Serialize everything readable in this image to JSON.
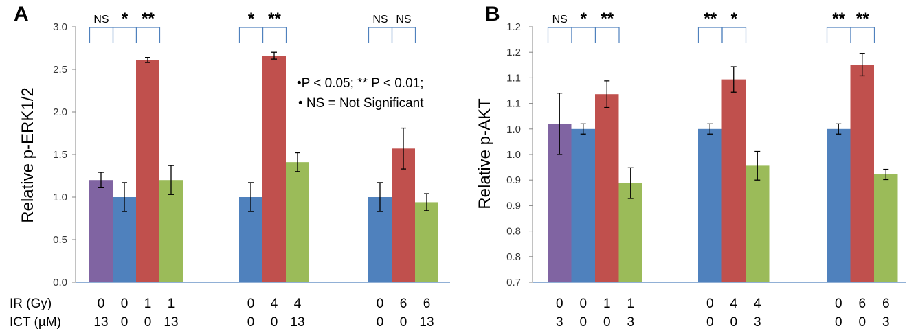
{
  "chart_data": [
    {
      "type": "bar",
      "panel": "A",
      "ylabel": "Relative p-ERK1/2",
      "ylim": [
        0,
        3.0
      ],
      "yticks": [
        "0.0",
        "0.5",
        "1.0",
        "1.5",
        "2.0",
        "2.5",
        "3.0"
      ],
      "ytick_values": [
        0,
        0.5,
        1.0,
        1.5,
        2.0,
        2.5,
        3.0
      ],
      "row_labels": [
        "IR (Gy)",
        "ICT (µM)"
      ],
      "groups": [
        {
          "bars": [
            {
              "value": 1.2,
              "error": 0.09,
              "color": "#8064a2",
              "ir": "0",
              "ict": "13"
            },
            {
              "value": 1.0,
              "error": 0.17,
              "color": "#4f81bd",
              "ir": "0",
              "ict": "0"
            },
            {
              "value": 2.61,
              "error": 0.03,
              "color": "#c0504d",
              "ir": "1",
              "ict": "0"
            },
            {
              "value": 1.2,
              "error": 0.17,
              "color": "#9bbb59",
              "ir": "1",
              "ict": "13"
            }
          ],
          "sig": [
            "NS",
            "*",
            "**"
          ]
        },
        {
          "bars": [
            {
              "value": 1.0,
              "error": 0.17,
              "color": "#4f81bd",
              "ir": "0",
              "ict": "0"
            },
            {
              "value": 2.66,
              "error": 0.04,
              "color": "#c0504d",
              "ir": "4",
              "ict": "0"
            },
            {
              "value": 1.41,
              "error": 0.11,
              "color": "#9bbb59",
              "ir": "4",
              "ict": "13"
            }
          ],
          "sig": [
            "*",
            "**"
          ]
        },
        {
          "bars": [
            {
              "value": 1.0,
              "error": 0.17,
              "color": "#4f81bd",
              "ir": "0",
              "ict": "0"
            },
            {
              "value": 1.57,
              "error": 0.24,
              "color": "#c0504d",
              "ir": "6",
              "ict": "0"
            },
            {
              "value": 0.94,
              "error": 0.1,
              "color": "#9bbb59",
              "ir": "6",
              "ict": "13"
            }
          ],
          "sig": [
            "NS",
            "NS"
          ]
        }
      ],
      "notes": [
        "•P < 0.05; ** P < 0.01;",
        "• NS = Not Significant"
      ]
    },
    {
      "type": "bar",
      "panel": "B",
      "ylabel": "Relative p-AKT",
      "ylim": [
        0.7,
        1.2
      ],
      "yticks": [
        "0.7",
        "0.8",
        "0.8",
        "0.9",
        "0.9",
        "1.0",
        "1.0",
        "1.1",
        "1.1",
        "1.2",
        "1.2"
      ],
      "ytick_values": [
        0.7,
        0.75,
        0.8,
        0.85,
        0.9,
        0.95,
        1.0,
        1.05,
        1.1,
        1.15,
        1.2
      ],
      "row_labels": [
        "",
        ""
      ],
      "groups": [
        {
          "bars": [
            {
              "value": 1.01,
              "error": 0.06,
              "color": "#8064a2",
              "ir": "0",
              "ict": "3"
            },
            {
              "value": 1.0,
              "error": 0.01,
              "color": "#4f81bd",
              "ir": "0",
              "ict": "0"
            },
            {
              "value": 1.068,
              "error": 0.026,
              "color": "#c0504d",
              "ir": "1",
              "ict": "0"
            },
            {
              "value": 0.894,
              "error": 0.03,
              "color": "#9bbb59",
              "ir": "1",
              "ict": "3"
            }
          ],
          "sig": [
            "NS",
            "*",
            "**"
          ]
        },
        {
          "bars": [
            {
              "value": 1.0,
              "error": 0.01,
              "color": "#4f81bd",
              "ir": "0",
              "ict": "0"
            },
            {
              "value": 1.097,
              "error": 0.025,
              "color": "#c0504d",
              "ir": "4",
              "ict": "0"
            },
            {
              "value": 0.928,
              "error": 0.028,
              "color": "#9bbb59",
              "ir": "4",
              "ict": "3"
            }
          ],
          "sig": [
            "**",
            "*"
          ]
        },
        {
          "bars": [
            {
              "value": 1.0,
              "error": 0.01,
              "color": "#4f81bd",
              "ir": "0",
              "ict": "0"
            },
            {
              "value": 1.126,
              "error": 0.022,
              "color": "#c0504d",
              "ir": "6",
              "ict": "0"
            },
            {
              "value": 0.911,
              "error": 0.01,
              "color": "#9bbb59",
              "ir": "6",
              "ict": "3"
            }
          ],
          "sig": [
            "**",
            "**"
          ]
        }
      ],
      "notes": []
    }
  ]
}
